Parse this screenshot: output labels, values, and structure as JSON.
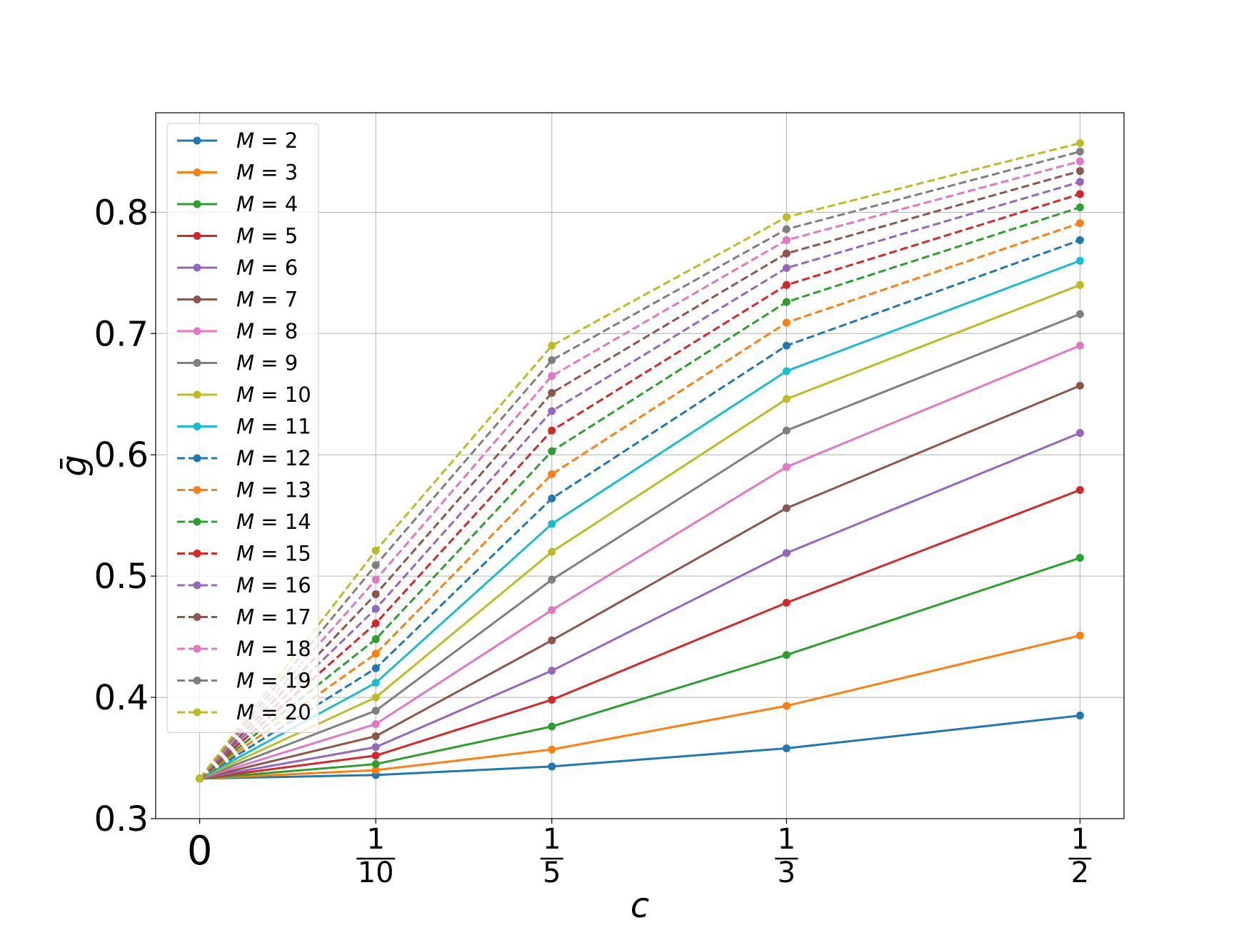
{
  "chart_data": {
    "type": "line",
    "title": "",
    "xlabel": "c",
    "ylabel": "ḡ",
    "x": [
      0,
      0.1,
      0.2,
      0.3333,
      0.5
    ],
    "x_tick_labels": [
      {
        "text": "0"
      },
      {
        "num": "1",
        "den": "10"
      },
      {
        "num": "1",
        "den": "5"
      },
      {
        "num": "1",
        "den": "3"
      },
      {
        "num": "1",
        "den": "2"
      }
    ],
    "xlim": [
      -0.025,
      0.525
    ],
    "ylim": [
      0.3,
      0.882
    ],
    "y_ticks": [
      0.3,
      0.4,
      0.5,
      0.6,
      0.7,
      0.8
    ],
    "y_tick_labels": [
      "0.3",
      "0.4",
      "0.5",
      "0.6",
      "0.7",
      "0.8"
    ],
    "grid": true,
    "legend_position": "upper-left",
    "series": [
      {
        "name": "M = 2",
        "label_var": "M",
        "label_val": "2",
        "color": "#1f77b4",
        "dash": false,
        "values": [
          0.333,
          0.336,
          0.343,
          0.358,
          0.385
        ]
      },
      {
        "name": "M = 3",
        "label_var": "M",
        "label_val": "3",
        "color": "#ff7f0e",
        "dash": false,
        "values": [
          0.333,
          0.34,
          0.357,
          0.393,
          0.451
        ]
      },
      {
        "name": "M = 4",
        "label_var": "M",
        "label_val": "4",
        "color": "#2ca02c",
        "dash": false,
        "values": [
          0.333,
          0.345,
          0.376,
          0.435,
          0.515
        ]
      },
      {
        "name": "M = 5",
        "label_var": "M",
        "label_val": "5",
        "color": "#d62728",
        "dash": false,
        "values": [
          0.333,
          0.352,
          0.398,
          0.478,
          0.571
        ]
      },
      {
        "name": "M = 6",
        "label_var": "M",
        "label_val": "6",
        "color": "#9467bd",
        "dash": false,
        "values": [
          0.333,
          0.359,
          0.422,
          0.519,
          0.618
        ]
      },
      {
        "name": "M = 7",
        "label_var": "M",
        "label_val": "7",
        "color": "#8c564b",
        "dash": false,
        "values": [
          0.333,
          0.368,
          0.447,
          0.556,
          0.657
        ]
      },
      {
        "name": "M = 8",
        "label_var": "M",
        "label_val": "8",
        "color": "#e377c2",
        "dash": false,
        "values": [
          0.333,
          0.378,
          0.472,
          0.59,
          0.69
        ]
      },
      {
        "name": "M = 9",
        "label_var": "M",
        "label_val": "9",
        "color": "#7f7f7f",
        "dash": false,
        "values": [
          0.333,
          0.389,
          0.497,
          0.62,
          0.716
        ]
      },
      {
        "name": "M = 10",
        "label_var": "M",
        "label_val": "10",
        "color": "#bcbd22",
        "dash": false,
        "values": [
          0.333,
          0.4,
          0.52,
          0.646,
          0.74
        ]
      },
      {
        "name": "M = 11",
        "label_var": "M",
        "label_val": "11",
        "color": "#17becf",
        "dash": false,
        "values": [
          0.333,
          0.412,
          0.543,
          0.669,
          0.76
        ]
      },
      {
        "name": "M = 12",
        "label_var": "M",
        "label_val": "12",
        "color": "#1f77b4",
        "dash": true,
        "values": [
          0.333,
          0.424,
          0.564,
          0.69,
          0.777
        ]
      },
      {
        "name": "M = 13",
        "label_var": "M",
        "label_val": "13",
        "color": "#ff7f0e",
        "dash": true,
        "values": [
          0.333,
          0.436,
          0.584,
          0.709,
          0.791
        ]
      },
      {
        "name": "M = 14",
        "label_var": "M",
        "label_val": "14",
        "color": "#2ca02c",
        "dash": true,
        "values": [
          0.333,
          0.448,
          0.603,
          0.726,
          0.804
        ]
      },
      {
        "name": "M = 15",
        "label_var": "M",
        "label_val": "15",
        "color": "#d62728",
        "dash": true,
        "values": [
          0.333,
          0.461,
          0.62,
          0.74,
          0.815
        ]
      },
      {
        "name": "M = 16",
        "label_var": "M",
        "label_val": "16",
        "color": "#9467bd",
        "dash": true,
        "values": [
          0.333,
          0.473,
          0.636,
          0.754,
          0.825
        ]
      },
      {
        "name": "M = 17",
        "label_var": "M",
        "label_val": "17",
        "color": "#8c564b",
        "dash": true,
        "values": [
          0.333,
          0.485,
          0.651,
          0.766,
          0.834
        ]
      },
      {
        "name": "M = 18",
        "label_var": "M",
        "label_val": "18",
        "color": "#e377c2",
        "dash": true,
        "values": [
          0.333,
          0.497,
          0.665,
          0.777,
          0.842
        ]
      },
      {
        "name": "M = 19",
        "label_var": "M",
        "label_val": "19",
        "color": "#7f7f7f",
        "dash": true,
        "values": [
          0.333,
          0.509,
          0.678,
          0.786,
          0.85
        ]
      },
      {
        "name": "M = 20",
        "label_var": "M",
        "label_val": "20",
        "color": "#bcbd22",
        "dash": true,
        "values": [
          0.333,
          0.521,
          0.69,
          0.796,
          0.857
        ]
      }
    ]
  }
}
